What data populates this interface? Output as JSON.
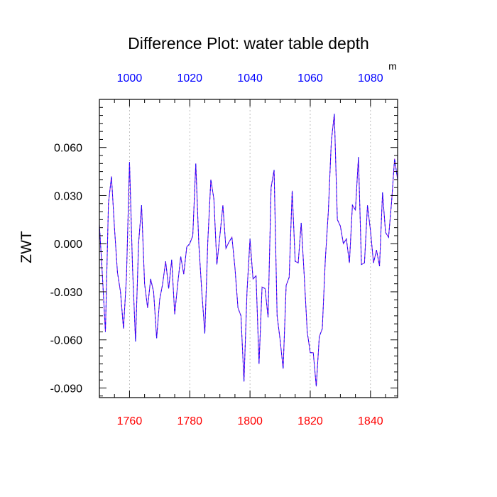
{
  "chart_data": {
    "type": "line",
    "title": "Difference Plot: water table depth",
    "ylabel": "ZWT",
    "top_axis_unit": "m",
    "x": [
      1750,
      1751,
      1752,
      1753,
      1754,
      1755,
      1756,
      1757,
      1758,
      1759,
      1760,
      1761,
      1762,
      1763,
      1764,
      1765,
      1766,
      1767,
      1768,
      1769,
      1770,
      1771,
      1772,
      1773,
      1774,
      1775,
      1776,
      1777,
      1778,
      1779,
      1780,
      1781,
      1782,
      1783,
      1784,
      1785,
      1786,
      1787,
      1788,
      1789,
      1790,
      1791,
      1792,
      1793,
      1794,
      1795,
      1796,
      1797,
      1798,
      1799,
      1800,
      1801,
      1802,
      1803,
      1804,
      1805,
      1806,
      1807,
      1808,
      1809,
      1810,
      1811,
      1812,
      1813,
      1814,
      1815,
      1816,
      1817,
      1818,
      1819,
      1820,
      1821,
      1822,
      1823,
      1824,
      1825,
      1826,
      1827,
      1828,
      1829,
      1830,
      1831,
      1832,
      1833,
      1834,
      1835,
      1836,
      1837,
      1838,
      1839,
      1840,
      1841,
      1842,
      1843,
      1844,
      1845,
      1846,
      1847,
      1848,
      1849
    ],
    "series": [
      {
        "color": "#7b00d9",
        "dash_color": "#1010ff",
        "values": [
          0.012,
          -0.02,
          -0.055,
          0.025,
          0.042,
          0.01,
          -0.018,
          -0.03,
          -0.053,
          -0.02,
          0.051,
          -0.015,
          -0.061,
          0.0,
          0.024,
          -0.025,
          -0.04,
          -0.022,
          -0.03,
          -0.059,
          -0.035,
          -0.025,
          -0.011,
          -0.028,
          -0.01,
          -0.044,
          -0.025,
          -0.008,
          -0.019,
          -0.002,
          0.0,
          0.005,
          0.05,
          0.0,
          -0.03,
          -0.056,
          0.002,
          0.04,
          0.028,
          -0.013,
          0.005,
          0.024,
          -0.003,
          0.001,
          0.004,
          -0.015,
          -0.04,
          -0.045,
          -0.086,
          -0.03,
          0.003,
          -0.022,
          -0.02,
          -0.075,
          -0.027,
          -0.028,
          -0.046,
          0.035,
          0.046,
          -0.045,
          -0.06,
          -0.078,
          -0.026,
          -0.021,
          0.033,
          -0.011,
          -0.012,
          0.013,
          -0.02,
          -0.055,
          -0.068,
          -0.068,
          -0.089,
          -0.058,
          -0.053,
          -0.01,
          0.02,
          0.064,
          0.081,
          0.015,
          0.011,
          0.0,
          0.003,
          -0.012,
          0.024,
          0.021,
          0.054,
          -0.013,
          -0.012,
          0.024,
          0.008,
          -0.012,
          -0.004,
          -0.014,
          0.032,
          0.007,
          0.004,
          0.026,
          0.053,
          0.04
        ]
      }
    ],
    "xlim": [
      1750,
      1849
    ],
    "ylim": [
      -0.096,
      0.09
    ],
    "bottom_ticks": [
      1760,
      1780,
      1800,
      1820,
      1840
    ],
    "bottom_tick_labels": [
      "1760",
      "1780",
      "1800",
      "1820",
      "1840"
    ],
    "bottom_tick_color": "#ff0000",
    "top_ticks": [
      1000,
      1020,
      1040,
      1060,
      1080
    ],
    "top_tick_labels": [
      "1000",
      "1020",
      "1040",
      "1060",
      "1080"
    ],
    "top_tick_color": "#0000ff",
    "top_axis_offset": 760,
    "y_ticks": [
      -0.09,
      -0.06,
      -0.03,
      0.0,
      0.03,
      0.06
    ],
    "y_tick_labels": [
      "-0.090",
      "-0.060",
      "-0.030",
      "0.000",
      "0.030",
      "0.060"
    ],
    "vertical_grid": true,
    "grid_color": "#b0b0b0"
  }
}
